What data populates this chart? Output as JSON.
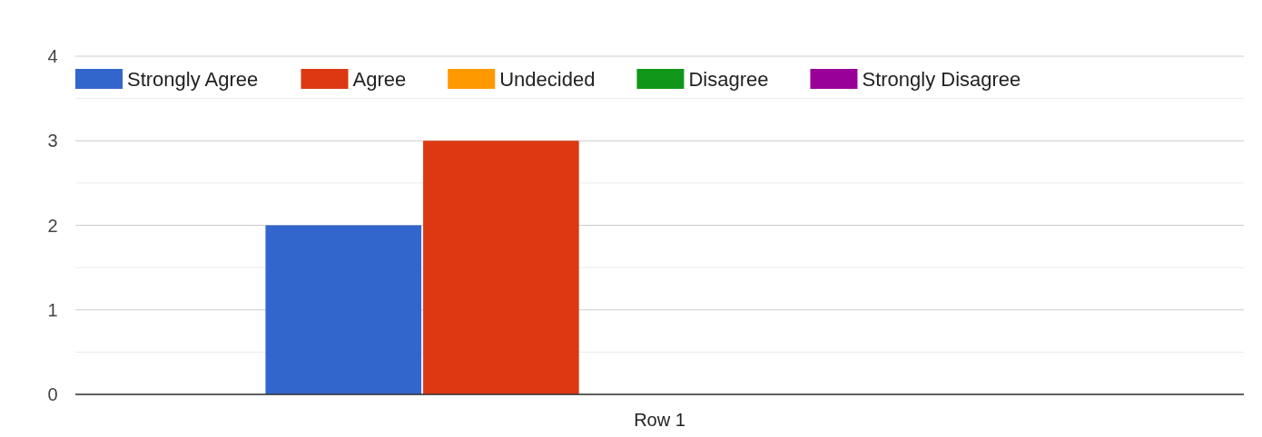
{
  "chart_data": {
    "type": "bar",
    "categories": [
      "Row 1"
    ],
    "series": [
      {
        "name": "Strongly Agree",
        "color": "#3366cc",
        "values": [
          2
        ]
      },
      {
        "name": "Agree",
        "color": "#dc3912",
        "values": [
          3
        ]
      },
      {
        "name": "Undecided",
        "color": "#ff9900",
        "values": [
          0
        ]
      },
      {
        "name": "Disagree",
        "color": "#109618",
        "values": [
          0
        ]
      },
      {
        "name": "Strongly Disagree",
        "color": "#990099",
        "values": [
          0
        ]
      }
    ],
    "ylim": [
      0,
      4
    ],
    "yticks": [
      0,
      {
        "value": 0.5,
        "label": null
      },
      1,
      {
        "value": 1.5,
        "label": null
      },
      2,
      {
        "value": 2.5,
        "label": null
      },
      3,
      {
        "value": 3.5,
        "label": null
      },
      4
    ],
    "grid": true,
    "legend": "top"
  }
}
